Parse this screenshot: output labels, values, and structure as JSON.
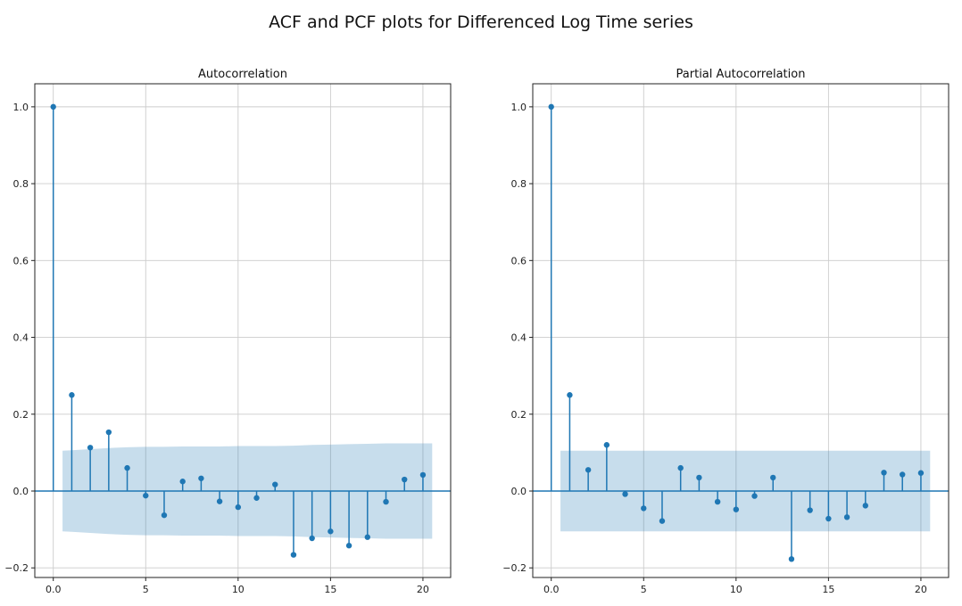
{
  "figure": {
    "title": "ACF and PCF plots for Differenced Log Time series"
  },
  "colors": {
    "stem": "#1f77b4",
    "confidence_band": "#1f77b4",
    "grid": "#cccccc",
    "axis": "#222222"
  },
  "chart_data": [
    {
      "type": "stem",
      "title": "Autocorrelation",
      "xlabel": "",
      "ylabel": "",
      "xlim": [
        -1,
        21.5
      ],
      "ylim": [
        -0.225,
        1.06
      ],
      "xticks": [
        0,
        5,
        10,
        15,
        20
      ],
      "yticks": [
        -0.2,
        0.0,
        0.2,
        0.4,
        0.6,
        0.8,
        1.0
      ],
      "grid": true,
      "x": [
        0,
        1,
        2,
        3,
        4,
        5,
        6,
        7,
        8,
        9,
        10,
        11,
        12,
        13,
        14,
        15,
        16,
        17,
        18,
        19,
        20
      ],
      "values": [
        1.0,
        0.25,
        0.113,
        0.153,
        0.06,
        -0.012,
        -0.063,
        0.025,
        0.033,
        -0.027,
        -0.042,
        -0.018,
        0.017,
        -0.166,
        -0.123,
        -0.105,
        -0.142,
        -0.12,
        -0.028,
        0.03,
        0.042
      ],
      "confidence_band": {
        "x": [
          0.5,
          1,
          2,
          3,
          4,
          5,
          6,
          7,
          8,
          9,
          10,
          11,
          12,
          13,
          14,
          15,
          16,
          17,
          18,
          19,
          20,
          20.5
        ],
        "upper": [
          0.105,
          0.106,
          0.109,
          0.112,
          0.114,
          0.115,
          0.115,
          0.116,
          0.116,
          0.116,
          0.117,
          0.117,
          0.117,
          0.118,
          0.12,
          0.121,
          0.122,
          0.123,
          0.124,
          0.124,
          0.124,
          0.124
        ],
        "lower": [
          -0.105,
          -0.106,
          -0.109,
          -0.112,
          -0.114,
          -0.115,
          -0.115,
          -0.116,
          -0.116,
          -0.116,
          -0.117,
          -0.117,
          -0.117,
          -0.118,
          -0.12,
          -0.121,
          -0.122,
          -0.123,
          -0.124,
          -0.124,
          -0.124,
          -0.124
        ]
      }
    },
    {
      "type": "stem",
      "title": "Partial Autocorrelation",
      "xlabel": "",
      "ylabel": "",
      "xlim": [
        -1,
        21.5
      ],
      "ylim": [
        -0.225,
        1.06
      ],
      "xticks": [
        0,
        5,
        10,
        15,
        20
      ],
      "yticks": [
        -0.2,
        0.0,
        0.2,
        0.4,
        0.6,
        0.8,
        1.0
      ],
      "grid": true,
      "x": [
        0,
        1,
        2,
        3,
        4,
        5,
        6,
        7,
        8,
        9,
        10,
        11,
        12,
        13,
        14,
        15,
        16,
        17,
        18,
        19,
        20
      ],
      "values": [
        1.0,
        0.25,
        0.055,
        0.12,
        -0.008,
        -0.045,
        -0.078,
        0.06,
        0.035,
        -0.028,
        -0.048,
        -0.013,
        0.035,
        -0.177,
        -0.05,
        -0.072,
        -0.068,
        -0.038,
        0.048,
        0.043,
        0.047
      ],
      "confidence_band": {
        "x": [
          0.5,
          20.5
        ],
        "upper": [
          0.105,
          0.105
        ],
        "lower": [
          -0.105,
          -0.105
        ]
      }
    }
  ]
}
